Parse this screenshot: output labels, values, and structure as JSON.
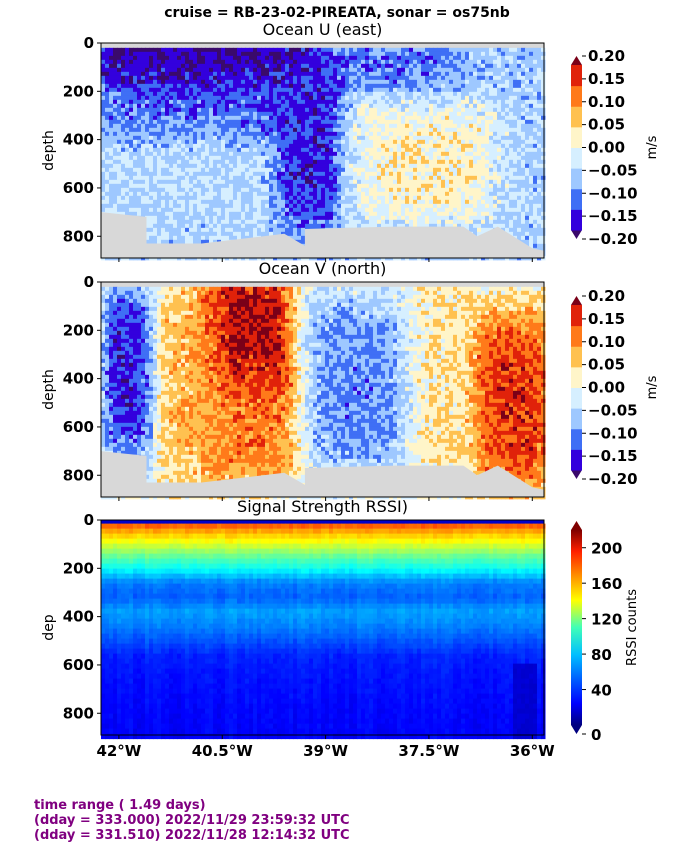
{
  "suptitle": "cruise = RB-23-02-PIREATA,  sonar = os75nb",
  "colors": {
    "land": "#d8d8d8",
    "footer_text": "#800080",
    "diverging_levels": [
      "#3a0a6b",
      "#3300dd",
      "#3f6ff5",
      "#9ec8ff",
      "#d6efff",
      "#fff5c9",
      "#ffc150",
      "#ff7a1a",
      "#e0220a",
      "#7a0018"
    ]
  },
  "footer": {
    "line1": "time range ( 1.49 days)",
    "line2": "(dday = 333.000) 2022/11/29 23:59:32 UTC",
    "line3": "(dday = 331.510) 2022/11/28 12:14:32 UTC"
  },
  "chart_data": [
    {
      "type": "heatmap",
      "title": "Ocean U (east)",
      "xlabel": "",
      "ylabel": "depth",
      "xlim": [
        -42.26,
        -35.83
      ],
      "ylim": [
        890,
        0
      ],
      "xticks": [
        -42,
        -40.5,
        -39,
        -37.5,
        -36
      ],
      "xtick_labels": [
        "42°W",
        "40.5°W",
        "39°W",
        "37.5°W",
        "36°W"
      ],
      "yticks": [
        0,
        200,
        400,
        600,
        800
      ],
      "ytick_labels": [
        "0",
        "200",
        "400",
        "600",
        "800"
      ],
      "colorbar": {
        "label": "m/s",
        "levels": [
          -0.2,
          -0.15,
          -0.1,
          -0.05,
          0.0,
          0.05,
          0.1,
          0.15,
          0.2
        ],
        "tick_labels": [
          "0.20",
          "0.15",
          "0.10",
          "0.05",
          "0.00",
          "−0.05",
          "−0.10",
          "−0.15",
          "−0.20"
        ],
        "extend": "both"
      },
      "field_summary": [
        {
          "lon_range": [
            -42.26,
            -39.5
          ],
          "depth_range": [
            0,
            100
          ],
          "value": -0.22
        },
        {
          "lon_range": [
            -42.26,
            -39.5
          ],
          "depth_range": [
            100,
            350
          ],
          "value": -0.15
        },
        {
          "lon_range": [
            -39.6,
            -38.9
          ],
          "depth_range": [
            100,
            750
          ],
          "value": -0.17
        },
        {
          "lon_range": [
            -38.9,
            -37.0
          ],
          "depth_range": [
            0,
            150
          ],
          "value": -0.12
        },
        {
          "lon_range": [
            -38.5,
            -36.5
          ],
          "depth_range": [
            300,
            700
          ],
          "value": 0.03
        },
        {
          "lon_range": [
            -42.26,
            -40.0
          ],
          "depth_range": [
            350,
            700
          ],
          "value": -0.05
        },
        {
          "lon_range": [
            -36.5,
            -35.83
          ],
          "depth_range": [
            0,
            850
          ],
          "value": -0.07
        }
      ],
      "bottom_depth": {
        "lon": [
          -42.26,
          -41.6,
          -41.6,
          -40.8,
          -39.6,
          -39.3,
          -39.3,
          -38.0,
          -37.0,
          -36.8,
          -36.5,
          -36.0,
          -35.83
        ],
        "depth": [
          700,
          720,
          830,
          830,
          790,
          840,
          770,
          760,
          760,
          800,
          760,
          850,
          860
        ]
      }
    },
    {
      "type": "heatmap",
      "title": "Ocean V (north)",
      "xlabel": "",
      "ylabel": "depth",
      "xlim": [
        -42.26,
        -35.83
      ],
      "ylim": [
        890,
        0
      ],
      "xticks": [
        -42,
        -40.5,
        -39,
        -37.5,
        -36
      ],
      "xtick_labels": [
        "42°W",
        "40.5°W",
        "39°W",
        "37.5°W",
        "36°W"
      ],
      "yticks": [
        0,
        200,
        400,
        600,
        800
      ],
      "ytick_labels": [
        "0",
        "200",
        "400",
        "600",
        "800"
      ],
      "colorbar": {
        "label": "m/s",
        "levels": [
          -0.2,
          -0.15,
          -0.1,
          -0.05,
          0.0,
          0.05,
          0.1,
          0.15,
          0.2
        ],
        "tick_labels": [
          "0.20",
          "0.15",
          "0.10",
          "0.05",
          "0.00",
          "−0.05",
          "−0.10",
          "−0.15",
          "−0.20"
        ],
        "extend": "both"
      },
      "field_summary": [
        {
          "lon_range": [
            -42.1,
            -41.6
          ],
          "depth_range": [
            50,
            700
          ],
          "value": -0.17
        },
        {
          "lon_range": [
            -41.4,
            -40.6
          ],
          "depth_range": [
            0,
            800
          ],
          "value": 0.08
        },
        {
          "lon_range": [
            -40.6,
            -39.6
          ],
          "depth_range": [
            0,
            400
          ],
          "value": 0.21
        },
        {
          "lon_range": [
            -40.6,
            -39.5
          ],
          "depth_range": [
            400,
            800
          ],
          "value": 0.12
        },
        {
          "lon_range": [
            -39.2,
            -37.9
          ],
          "depth_range": [
            100,
            750
          ],
          "value": -0.11
        },
        {
          "lon_range": [
            -37.7,
            -36.9
          ],
          "depth_range": [
            0,
            800
          ],
          "value": 0.04
        },
        {
          "lon_range": [
            -36.7,
            -35.83
          ],
          "depth_range": [
            150,
            850
          ],
          "value": 0.17
        }
      ],
      "bottom_depth": {
        "lon": [
          -42.26,
          -41.6,
          -41.6,
          -40.8,
          -39.6,
          -39.3,
          -39.3,
          -38.0,
          -37.0,
          -36.8,
          -36.5,
          -36.0,
          -35.83
        ],
        "depth": [
          700,
          720,
          830,
          830,
          790,
          840,
          770,
          760,
          760,
          800,
          760,
          850,
          860
        ]
      }
    },
    {
      "type": "heatmap",
      "title": "Signal Strength RSSI)",
      "xlabel": "",
      "ylabel": "dep",
      "xlim": [
        -42.26,
        -35.83
      ],
      "ylim": [
        890,
        0
      ],
      "xticks": [
        -42,
        -40.5,
        -39,
        -37.5,
        -36
      ],
      "xtick_labels": [
        "42°W",
        "40.5°W",
        "39°W",
        "37.5°W",
        "36°W"
      ],
      "yticks": [
        0,
        200,
        400,
        600,
        800
      ],
      "ytick_labels": [
        "0",
        "200",
        "400",
        "600",
        "800"
      ],
      "colorbar": {
        "label": "RSSI counts",
        "range": [
          0,
          220
        ],
        "ticks": [
          0,
          40,
          80,
          120,
          160,
          200
        ],
        "tick_labels": [
          "0",
          "40",
          "80",
          "120",
          "160",
          "200"
        ],
        "colormap": "jet",
        "extend": "both"
      },
      "depth_profile": {
        "depth": [
          20,
          40,
          80,
          120,
          160,
          200,
          260,
          320,
          380,
          440,
          500,
          560,
          620,
          700,
          800,
          880
        ],
        "rssi": [
          175,
          160,
          140,
          120,
          100,
          85,
          55,
          48,
          62,
          55,
          45,
          35,
          32,
          30,
          28,
          27
        ]
      },
      "anomalies": [
        {
          "lon_range": [
            -36.3,
            -35.95
          ],
          "depth_range": [
            600,
            890
          ],
          "rssi": 18
        }
      ]
    }
  ]
}
